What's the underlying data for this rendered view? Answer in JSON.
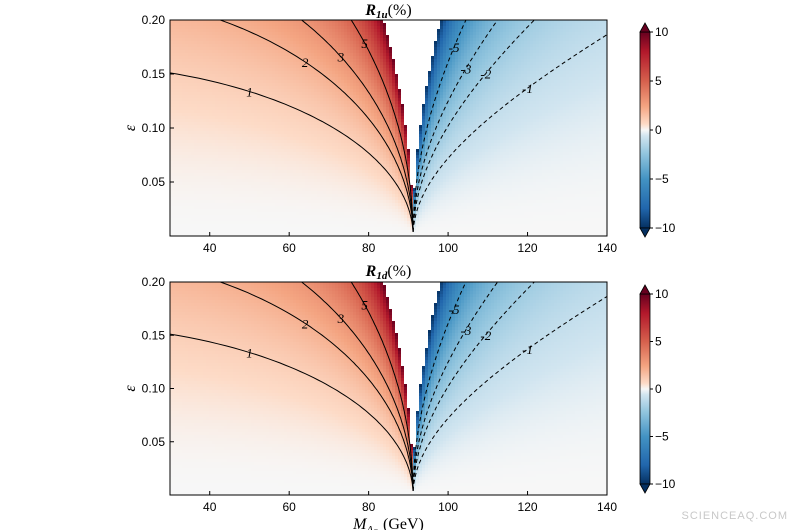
{
  "chart_data": [
    {
      "type": "heatmap",
      "title": "R",
      "title_sub": "1u",
      "title_suffix": "(%)",
      "xlabel": "",
      "ylabel": "ε",
      "xlim": [
        30,
        140
      ],
      "ylim": [
        0,
        0.2
      ],
      "x_ticks": [
        40,
        60,
        80,
        100,
        120,
        140
      ],
      "y_ticks": [
        0.05,
        0.1,
        0.15,
        0.2
      ],
      "y_tick_labels": [
        "0.05",
        "0.10",
        "0.15",
        "0.20"
      ],
      "pole": 91.19,
      "colormap": "RdBu_r",
      "colorbar": {
        "min": -10,
        "max": 10,
        "ticks": [
          10,
          5,
          0,
          -5,
          -10
        ],
        "tick_labels": [
          "10",
          "5",
          "0",
          "−5",
          "−10"
        ],
        "extend": "both"
      },
      "contours": [
        {
          "level": 1,
          "label": "1",
          "style": "solid",
          "label_x": 50
        },
        {
          "level": 2,
          "label": "2",
          "style": "solid",
          "label_x": 64
        },
        {
          "level": 3,
          "label": "3",
          "style": "solid",
          "label_x": 73
        },
        {
          "level": 5,
          "label": "5",
          "style": "solid",
          "label_x": 79
        },
        {
          "level": -5,
          "label": "-5",
          "style": "dashed",
          "label_x": 101.5
        },
        {
          "level": -3,
          "label": "-3",
          "style": "dashed",
          "label_x": 104.5
        },
        {
          "level": -2,
          "label": "-2",
          "style": "dashed",
          "label_x": 109.5
        },
        {
          "level": -1,
          "label": "-1",
          "style": "dashed",
          "label_x": 120
        }
      ]
    },
    {
      "type": "heatmap",
      "title": "R",
      "title_sub": "1d",
      "title_suffix": "(%)",
      "xlabel": "M",
      "xlabel_sub": "A",
      "xlabel_subsub": "D",
      "xlabel_suffix": " (GeV)",
      "ylabel": "ε",
      "xlim": [
        30,
        140
      ],
      "ylim": [
        0,
        0.2
      ],
      "x_ticks": [
        40,
        60,
        80,
        100,
        120,
        140
      ],
      "y_ticks": [
        0.05,
        0.1,
        0.15,
        0.2
      ],
      "y_tick_labels": [
        "0.05",
        "0.10",
        "0.15",
        "0.20"
      ],
      "pole": 91.19,
      "colormap": "RdBu_r",
      "colorbar": {
        "min": -10,
        "max": 10,
        "ticks": [
          10,
          5,
          0,
          -5,
          -10
        ],
        "tick_labels": [
          "10",
          "5",
          "0",
          "−5",
          "−10"
        ],
        "extend": "both"
      },
      "contours": [
        {
          "level": 1,
          "label": "1",
          "style": "solid",
          "label_x": 50
        },
        {
          "level": 2,
          "label": "2",
          "style": "solid",
          "label_x": 64
        },
        {
          "level": 3,
          "label": "3",
          "style": "solid",
          "label_x": 73
        },
        {
          "level": 5,
          "label": "5",
          "style": "solid",
          "label_x": 79
        },
        {
          "level": -5,
          "label": "-5",
          "style": "dashed",
          "label_x": 101.5
        },
        {
          "level": -3,
          "label": "-3",
          "style": "dashed",
          "label_x": 104.5
        },
        {
          "level": -2,
          "label": "-2",
          "style": "dashed",
          "label_x": 109.5
        },
        {
          "level": -1,
          "label": "-1",
          "style": "dashed",
          "label_x": 120
        }
      ]
    }
  ],
  "watermark": "SCIENCEAQ.COM"
}
